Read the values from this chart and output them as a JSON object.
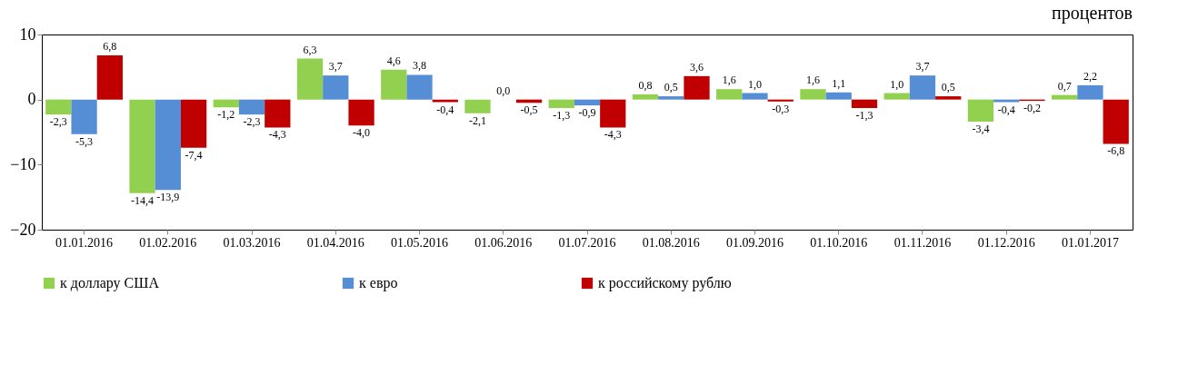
{
  "chart_data": {
    "type": "bar",
    "subtitle": "процентов",
    "categories": [
      "01.01.2016",
      "01.02.2016",
      "01.03.2016",
      "01.04.2016",
      "01.05.2016",
      "01.06.2016",
      "01.07.2016",
      "01.08.2016",
      "01.09.2016",
      "01.10.2016",
      "01.11.2016",
      "01.12.2016",
      "01.01.2017"
    ],
    "series": [
      {
        "name": "к доллару США",
        "color": "#92d050",
        "values": [
          -2.3,
          -14.4,
          -1.2,
          6.3,
          4.6,
          -2.1,
          -1.3,
          0.8,
          1.6,
          1.6,
          1.0,
          -3.4,
          0.7
        ],
        "value_labels": [
          "-2,3",
          "-14,4",
          "-1,2",
          "6,3",
          "4,6",
          "-2,1",
          "-1,3",
          "0,8",
          "1,6",
          "1,6",
          "1,0",
          "-3,4",
          "0,7"
        ]
      },
      {
        "name": "к евро",
        "color": "#558ed5",
        "values": [
          -5.3,
          -13.9,
          -2.3,
          3.7,
          3.8,
          0.0,
          -0.9,
          0.5,
          1.0,
          1.1,
          3.7,
          -0.4,
          2.2
        ],
        "value_labels": [
          "-5,3",
          "-13,9",
          "-2,3",
          "3,7",
          "3,8",
          "0,0",
          "-0,9",
          "0,5",
          "1,0",
          "1,1",
          "3,7",
          "-0,4",
          "2,2"
        ]
      },
      {
        "name": "к российскому рублю",
        "color": "#c00000",
        "values": [
          6.8,
          -7.4,
          -4.3,
          -4.0,
          -0.4,
          -0.5,
          -4.3,
          3.6,
          -0.3,
          -1.3,
          0.5,
          -0.2,
          -6.8
        ],
        "value_labels": [
          "6,8",
          "-7,4",
          "-4,3",
          "-4,0",
          "-0,4",
          "-0,5",
          "-4,3",
          "3,6",
          "-0,3",
          "-1,3",
          "0,5",
          "-0,2",
          "-6,8"
        ]
      }
    ],
    "ylim": [
      -20,
      10
    ],
    "yticks": [
      -20,
      -10,
      0,
      10
    ],
    "grid": false,
    "legend": "bottom"
  }
}
